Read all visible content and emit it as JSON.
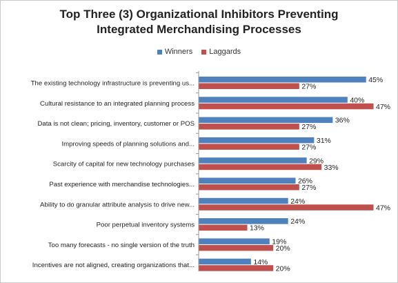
{
  "chart_data": {
    "type": "bar",
    "orientation": "horizontal",
    "title_line1": "Top Three (3) Organizational Inhibitors Preventing",
    "title_line2": "Integrated Merchandising  Processes",
    "legend_position": "top",
    "categories": [
      "The existing technology infrastructure is preventing us...",
      "Cultural resistance to an integrated planning process",
      "Data is not clean; pricing, inventory, customer or POS",
      "Improving speeds of planning solutions and...",
      "Scarcity of capital for new technology purchases",
      "Past experience with merchandise technologies...",
      "Ability to do granular attribute analysis to drive new...",
      "Poor perpetual inventory systems",
      "Too many forecasts - no single version of the truth",
      "Incentives are not aligned, creating organizations that..."
    ],
    "series": [
      {
        "name": "Winners",
        "color": "#4f81bd",
        "values": [
          45,
          40,
          36,
          31,
          29,
          26,
          24,
          24,
          19,
          14
        ]
      },
      {
        "name": "Laggards",
        "color": "#c0504d",
        "values": [
          27,
          47,
          27,
          27,
          33,
          27,
          47,
          13,
          20,
          20
        ]
      }
    ],
    "value_suffix": "%",
    "xlim": [
      0,
      50
    ],
    "grid": false
  }
}
